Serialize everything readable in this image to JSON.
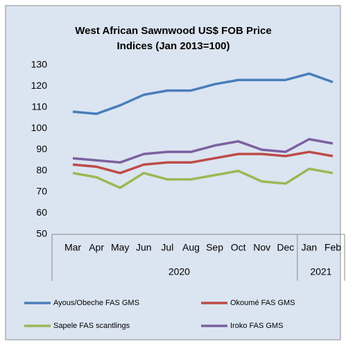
{
  "chart_data": {
    "type": "line",
    "title": [
      "West African Sawnwood US$ FOB Price",
      "Indices (Jan 2013=100)"
    ],
    "categories": [
      "Mar",
      "Apr",
      "May",
      "Jun",
      "Jul",
      "Aug",
      "Sep",
      "Oct",
      "Nov",
      "Dec",
      "Jan",
      "Feb"
    ],
    "category_groups": [
      {
        "label": "2020",
        "count": 10
      },
      {
        "label": "2021",
        "count": 2
      }
    ],
    "series": [
      {
        "name": "Ayous/Obeche  FAS GMS",
        "color": "#4a7ebb",
        "values": [
          108,
          107,
          111,
          116,
          118,
          118,
          121,
          123,
          123,
          123,
          126,
          122
        ]
      },
      {
        "name": "Okoumé  FAS GMS",
        "color": "#be4b48",
        "values": [
          83,
          82,
          79,
          83,
          84,
          84,
          86,
          88,
          88,
          87,
          89,
          87
        ]
      },
      {
        "name": "Sapele FAS scantlings",
        "color": "#98b954",
        "values": [
          79,
          77,
          72,
          79,
          76,
          76,
          78,
          80,
          75,
          74,
          81,
          79
        ]
      },
      {
        "name": "Iroko FAS GMS",
        "color": "#7d60a0",
        "values": [
          86,
          85,
          84,
          88,
          89,
          89,
          92,
          94,
          90,
          89,
          95,
          93
        ]
      }
    ],
    "ylim": [
      50,
      130
    ],
    "yticks": [
      50,
      60,
      70,
      80,
      90,
      100,
      110,
      120,
      130
    ],
    "grid": false,
    "legend": "bottom"
  }
}
